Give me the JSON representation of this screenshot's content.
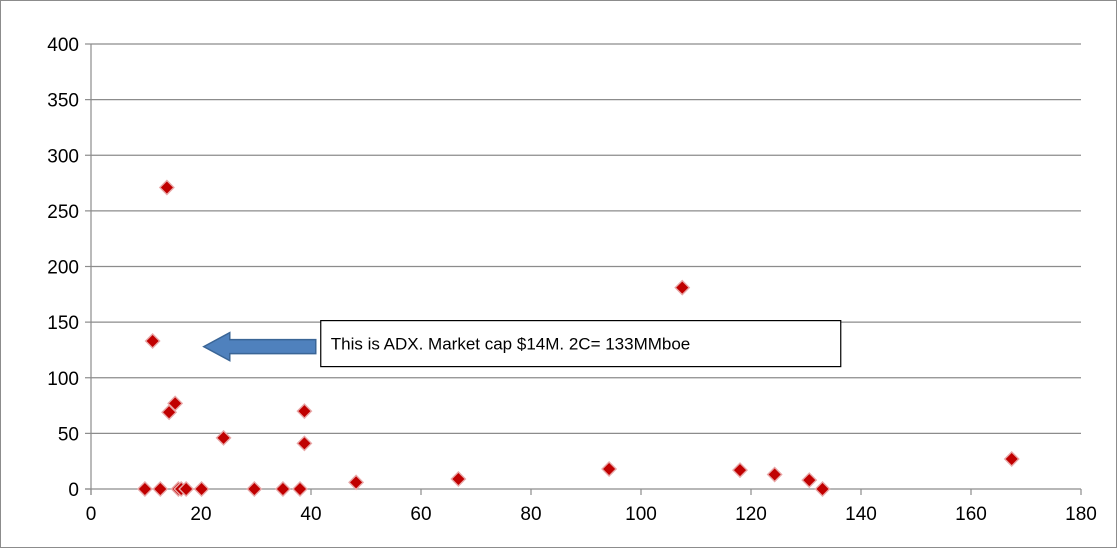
{
  "chart_data": {
    "type": "scatter",
    "title": "",
    "xlabel": "",
    "ylabel": "",
    "xlim": [
      0,
      180
    ],
    "ylim": [
      0,
      400
    ],
    "x_ticks": [
      "0",
      "20",
      "40",
      "60",
      "80",
      "100",
      "120",
      "140",
      "160",
      "180"
    ],
    "y_ticks": [
      "0",
      "50",
      "100",
      "150",
      "200",
      "250",
      "300",
      "350",
      "400"
    ],
    "grid": "horizontal",
    "marker_color": "#c00000",
    "series": [
      {
        "points": [
          {
            "x": 9.8,
            "y": 0
          },
          {
            "x": 11.2,
            "y": 133
          },
          {
            "x": 12.6,
            "y": 0
          },
          {
            "x": 13.8,
            "y": 271
          },
          {
            "x": 14.2,
            "y": 69
          },
          {
            "x": 15.3,
            "y": 77
          },
          {
            "x": 15.9,
            "y": 0
          },
          {
            "x": 16.4,
            "y": 0
          },
          {
            "x": 17.3,
            "y": 0
          },
          {
            "x": 20.1,
            "y": 0
          },
          {
            "x": 24.1,
            "y": 46
          },
          {
            "x": 29.7,
            "y": 0
          },
          {
            "x": 34.9,
            "y": 0
          },
          {
            "x": 38.0,
            "y": 0
          },
          {
            "x": 38.8,
            "y": 70
          },
          {
            "x": 38.8,
            "y": 41
          },
          {
            "x": 48.2,
            "y": 6
          },
          {
            "x": 66.8,
            "y": 9
          },
          {
            "x": 94.2,
            "y": 18
          },
          {
            "x": 107.5,
            "y": 181
          },
          {
            "x": 118.0,
            "y": 17
          },
          {
            "x": 124.3,
            "y": 13
          },
          {
            "x": 130.6,
            "y": 8
          },
          {
            "x": 133.0,
            "y": 0
          },
          {
            "x": 167.4,
            "y": 27
          }
        ]
      }
    ],
    "annotation": {
      "text": "This is ADX. Market cap $14M. 2C= 133MMboe",
      "arrow_target": {
        "x": 20.5,
        "y": 128
      },
      "arrow_color": "#4f81bd"
    }
  }
}
